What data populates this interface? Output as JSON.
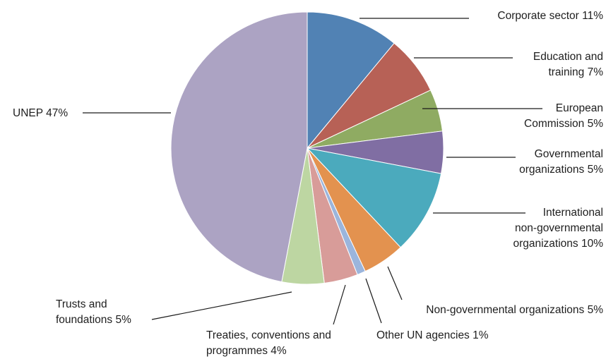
{
  "chart_data": {
    "type": "pie",
    "title": "",
    "slices": [
      {
        "label": [
          "Corporate sector 11%"
        ],
        "value": 11,
        "color": "#5182b4"
      },
      {
        "label": [
          "Education and",
          "training 7%"
        ],
        "value": 7,
        "color": "#b76156"
      },
      {
        "label": [
          "European",
          "Commission 5%"
        ],
        "value": 5,
        "color": "#8fab62"
      },
      {
        "label": [
          "Governmental",
          "organizations 5%"
        ],
        "value": 5,
        "color": "#806ea3"
      },
      {
        "label": [
          "International",
          "non-governmental",
          "organizations 10%"
        ],
        "value": 10,
        "color": "#4baabd"
      },
      {
        "label": [
          "Non-governmental organizations 5%"
        ],
        "value": 5,
        "color": "#e3924f"
      },
      {
        "label": [
          "Other UN agencies 1%"
        ],
        "value": 1,
        "color": "#9bb5dc"
      },
      {
        "label": [
          "Treaties, conventions and",
          "programmes 4%"
        ],
        "value": 4,
        "color": "#d89c99"
      },
      {
        "label": [
          "Trusts and",
          "foundations 5%"
        ],
        "value": 5,
        "color": "#bdd6a2"
      },
      {
        "label": [
          "UNEP 47%"
        ],
        "value": 47,
        "color": "#aca3c3"
      }
    ]
  }
}
